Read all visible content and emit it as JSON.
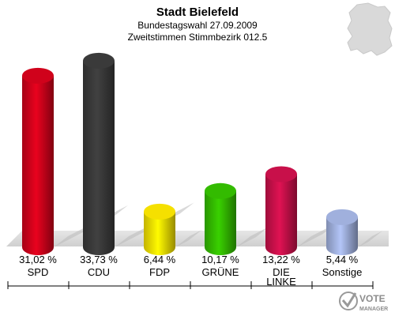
{
  "chart_data": {
    "type": "bar",
    "title": "Stadt Bielefeld",
    "subtitle": "Bundestagswahl 27.09.2009",
    "subtitle2": "Zweitstimmen Stimmbezirk 012.5",
    "categories": [
      "SPD",
      "CDU",
      "FDP",
      "GRÜNE",
      "DIE LINKE",
      "Sonstige"
    ],
    "values": [
      31.02,
      33.73,
      6.44,
      10.17,
      13.22,
      5.44
    ],
    "value_labels": [
      "31,02 %",
      "33,73 %",
      "6,44 %",
      "10,17 %",
      "13,22 %",
      "5,44 %"
    ],
    "colors": [
      "#d0021b",
      "#3a3a3a",
      "#f5e000",
      "#33bb00",
      "#c8104a",
      "#a0b0dd"
    ],
    "ylim": [
      0,
      35
    ],
    "grid": false
  },
  "logo": {
    "line1": "VOTE",
    "line2": "MANAGER"
  }
}
